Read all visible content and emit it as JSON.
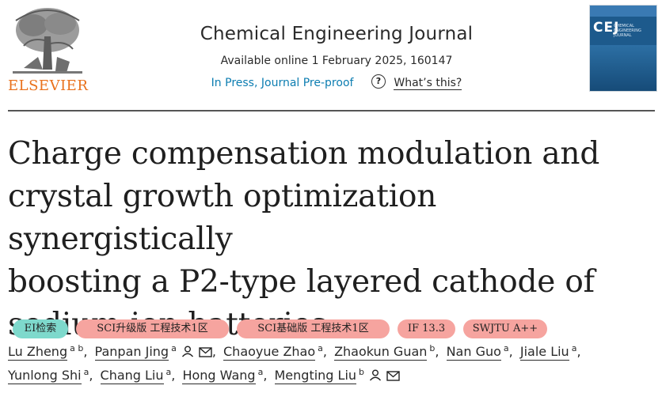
{
  "header": {
    "publisher": "ELSEVIER",
    "journal_title": "Chemical Engineering Journal",
    "availability": "Available online 1 February 2025, 160147",
    "status": "In Press, Journal Pre-proof",
    "help_link": "What’s this?",
    "cover_abbrev": "CEJ",
    "cover_subtitle": "CHEMICAL ENGINEERING JOURNAL"
  },
  "article": {
    "title_lines": [
      "Charge compensation modulation and",
      "crystal growth optimization synergistically",
      "boosting a P2-type layered cathode of",
      "sodium-ion batteries"
    ]
  },
  "badges": [
    {
      "label": "EI检索",
      "color": "#7ed9cc"
    },
    {
      "label": "SCI升级版 工程技术1区",
      "color": "#f6a49f"
    },
    {
      "label": "SCI基础版 工程技术1区",
      "color": "#f6a49f"
    },
    {
      "label": "IF 13.3",
      "color": "#f6a49f"
    },
    {
      "label": "SWJTU A++",
      "color": "#f6a49f"
    }
  ],
  "authors": [
    {
      "name": "Lu Zheng",
      "aff": "a b"
    },
    {
      "name": "Panpan Jing",
      "aff": "a"
    },
    {
      "name": "Chaoyue Zhao",
      "aff": "a"
    },
    {
      "name": "Zhaokun Guan",
      "aff": "b"
    },
    {
      "name": "Nan Guo",
      "aff": "a"
    },
    {
      "name": "Jiale Liu",
      "aff": "a"
    },
    {
      "name": "Yunlong Shi",
      "aff": "a"
    },
    {
      "name": "Chang Liu",
      "aff": "a"
    },
    {
      "name": "Hong Wang",
      "aff": "a"
    },
    {
      "name": "Mengting Liu",
      "aff": "b"
    }
  ]
}
